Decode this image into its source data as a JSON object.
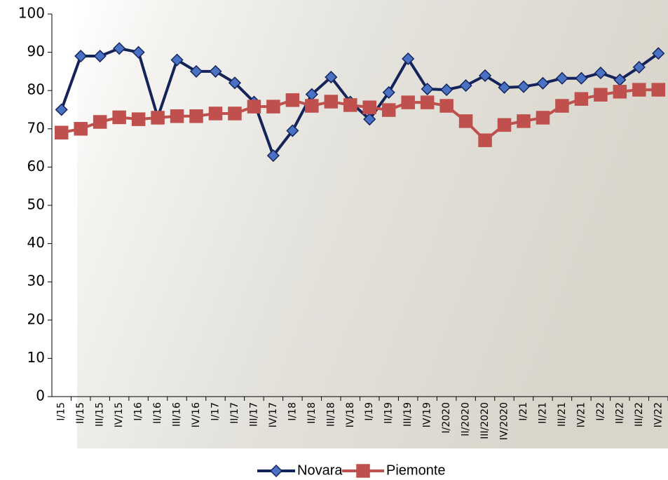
{
  "chart_data": {
    "type": "line",
    "categories": [
      "I/15",
      "II/15",
      "III/15",
      "IV/15",
      "I/16",
      "II/16",
      "III/16",
      "IV/16",
      "I/17",
      "II/17",
      "III/17",
      "IV/17",
      "I/18",
      "II/18",
      "III/18",
      "IV/18",
      "I/19",
      "II/19",
      "III/19",
      "IV/19",
      "I/2020",
      "II/2020",
      "III/2020",
      "IV/2020",
      "I/21",
      "II/21",
      "III/21",
      "IV/21",
      "I/22",
      "II/22",
      "III/22",
      "IV/22"
    ],
    "series": [
      {
        "name": "Novara",
        "color": "#14245a",
        "marker_color": "#4a72c4",
        "marker": "diamond",
        "values": [
          75,
          89,
          89,
          91,
          90,
          73,
          88,
          85,
          85,
          82,
          77,
          63,
          69.5,
          79,
          83.5,
          77,
          72.5,
          79.5,
          88.3,
          80.4,
          80.2,
          81.3,
          83.9,
          80.8,
          81,
          81.9,
          83.2,
          83.2,
          84.6,
          82.8,
          86.1,
          89.7
        ]
      },
      {
        "name": "Piemonte",
        "color": "#c0504d",
        "marker_color": "#c0504d",
        "marker": "square",
        "values": [
          69,
          70,
          71.8,
          73,
          72.5,
          72.9,
          73.3,
          73.3,
          74,
          74,
          75.8,
          75.8,
          77.5,
          76,
          77.1,
          76.2,
          75.6,
          74.9,
          76.9,
          76.9,
          76,
          72,
          67,
          71,
          72,
          72.9,
          76,
          77.8,
          78.9,
          79.7,
          80.2,
          80.2
        ]
      }
    ],
    "ylim": [
      0,
      100
    ],
    "yticks": [
      0,
      10,
      20,
      30,
      40,
      50,
      60,
      70,
      80,
      90,
      100
    ],
    "grid": false,
    "legend": "bottom"
  }
}
